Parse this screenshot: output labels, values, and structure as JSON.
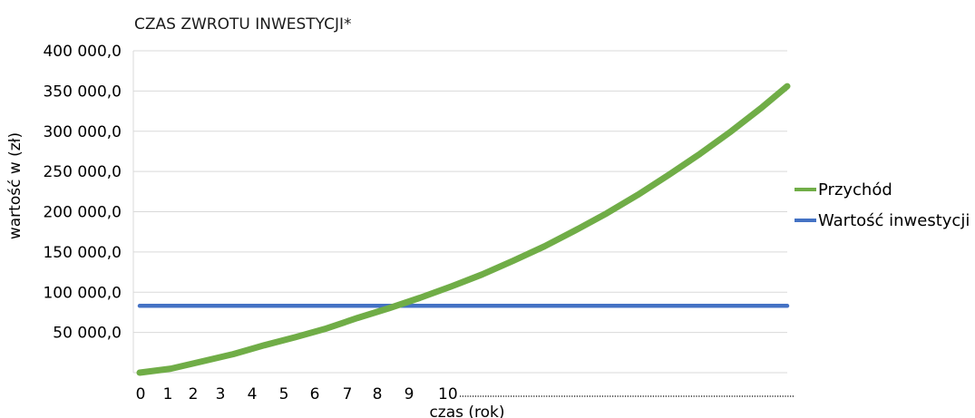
{
  "chart_data": {
    "type": "line",
    "title": "CZAS ZWROTU INWESTYCJI*",
    "xlabel": "czas (rok)",
    "ylabel": "wartość w (zł)",
    "ylim": [
      0,
      400000
    ],
    "yticks": [
      {
        "value": 50000,
        "label": "50 000,0"
      },
      {
        "value": 100000,
        "label": "100 000,0"
      },
      {
        "value": 150000,
        "label": "150 000,0"
      },
      {
        "value": 200000,
        "label": "200 000,0"
      },
      {
        "value": 250000,
        "label": "250 000,0"
      },
      {
        "value": 300000,
        "label": "300 000,0"
      },
      {
        "value": 350000,
        "label": "350 000,0"
      },
      {
        "value": 400000,
        "label": "400 000,0"
      }
    ],
    "xticks": [
      "0",
      "1",
      "2",
      "3",
      "4",
      "5",
      "6",
      "7",
      "8",
      "9",
      "10"
    ],
    "x_tick_suffix": "……………………………………………………………………………",
    "grid": true,
    "legend_placement": "right",
    "series": [
      {
        "name": "Przychód",
        "color": "#70ad47",
        "points": [
          [
            0,
            0
          ],
          [
            1,
            5000
          ],
          [
            2,
            14000
          ],
          [
            3,
            23000
          ],
          [
            4,
            34000
          ],
          [
            5,
            44000
          ],
          [
            6,
            55000
          ],
          [
            7,
            68000
          ],
          [
            8,
            80000
          ],
          [
            9,
            93000
          ],
          [
            10,
            107000
          ],
          [
            11,
            122000
          ],
          [
            12,
            139000
          ],
          [
            13,
            157000
          ],
          [
            14,
            177000
          ],
          [
            15,
            198000
          ],
          [
            16,
            221000
          ],
          [
            17,
            246000
          ],
          [
            18,
            272000
          ],
          [
            19,
            300000
          ],
          [
            20,
            330000
          ],
          [
            20.8,
            356000
          ]
        ]
      },
      {
        "name": "Wartość inwestycji",
        "color": "#4472c4",
        "points": [
          [
            0,
            83000
          ],
          [
            20.8,
            83000
          ]
        ]
      }
    ]
  }
}
